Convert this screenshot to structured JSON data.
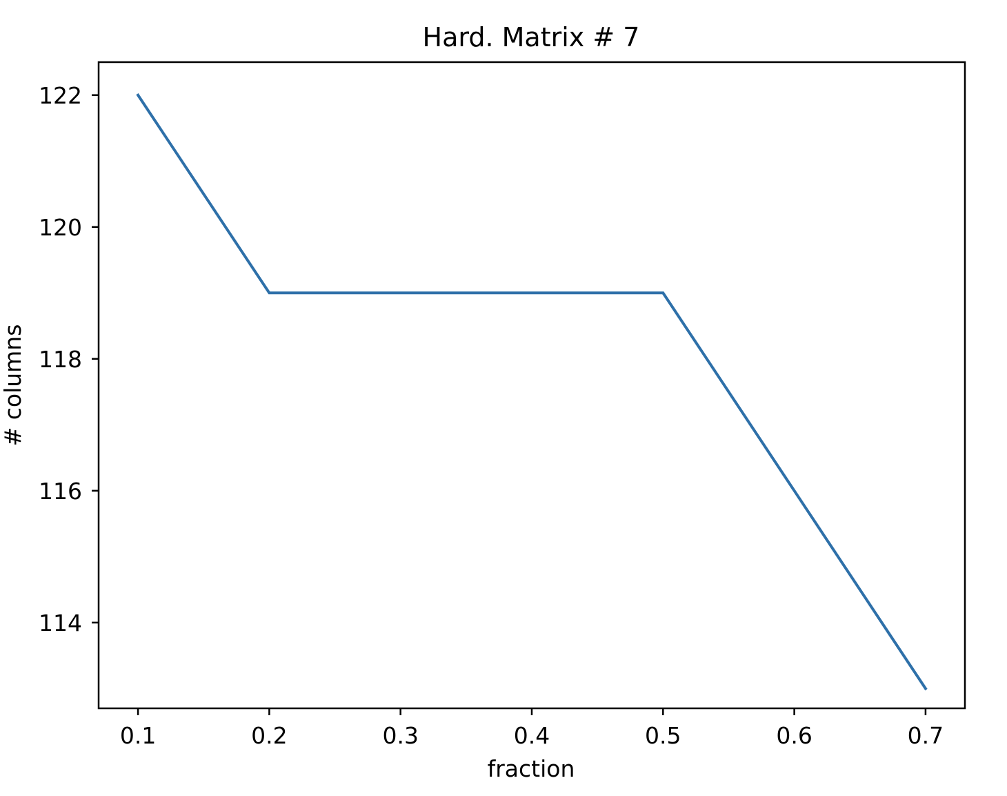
{
  "chart_data": {
    "type": "line",
    "title": "Hard. Matrix # 7",
    "xlabel": "fraction",
    "ylabel": "# columns",
    "x": [
      0.1,
      0.2,
      0.3,
      0.4,
      0.5,
      0.6,
      0.7
    ],
    "series": [
      {
        "values": [
          122,
          119,
          119,
          119,
          119,
          116,
          113
        ],
        "color": "#2e70a9"
      }
    ],
    "xlim": [
      0.07,
      0.73
    ],
    "ylim": [
      112.7,
      122.5
    ],
    "xticks": [
      0.1,
      0.2,
      0.3,
      0.4,
      0.5,
      0.6,
      0.7
    ],
    "xtick_labels": [
      "0.1",
      "0.2",
      "0.3",
      "0.4",
      "0.5",
      "0.6",
      "0.7"
    ],
    "yticks": [
      114,
      116,
      118,
      120,
      122
    ],
    "ytick_labels": [
      "114",
      "116",
      "118",
      "120",
      "122"
    ],
    "grid": false,
    "legend": "none"
  }
}
